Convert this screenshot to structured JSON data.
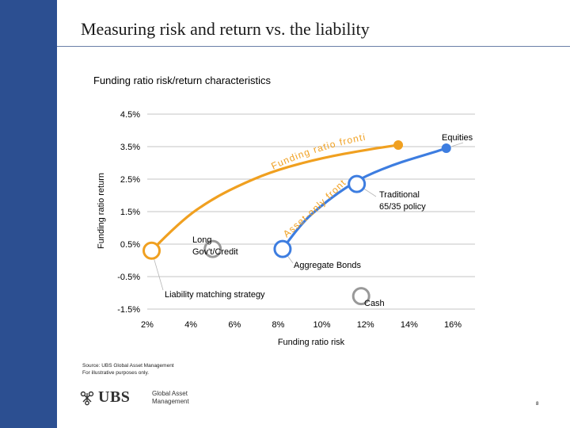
{
  "slide": {
    "title": "Measuring risk and return vs. the liability",
    "subtitle": "Funding ratio risk/return characteristics",
    "source_line1": "Source: UBS Global Asset Management",
    "source_line2": "For illustrative purposes only.",
    "logo_text": "UBS",
    "logo_name_line1": "Global Asset",
    "logo_name_line2": "Management",
    "page_number": "8"
  },
  "colors": {
    "sidebar": "#2c4f91",
    "liability_frontier": "#f0a020",
    "asset_frontier": "#3d7de0",
    "gray_point": "#999999",
    "grid": "#b0b0b0"
  },
  "chart_data": {
    "type": "scatter",
    "xlabel": "Funding ratio risk",
    "ylabel": "Funding ratio return",
    "xlim": [
      2,
      16
    ],
    "ylim": [
      -1.5,
      4.5
    ],
    "x_ticks": [
      2,
      4,
      6,
      8,
      10,
      12,
      14,
      16
    ],
    "x_tick_labels": [
      "2%",
      "4%",
      "6%",
      "8%",
      "10%",
      "12%",
      "14%",
      "16%"
    ],
    "y_ticks": [
      4.5,
      3.5,
      2.5,
      1.5,
      0.5,
      -0.5,
      -1.5
    ],
    "y_tick_labels": [
      "4.5%",
      "3.5%",
      "2.5%",
      "1.5%",
      "0.5%",
      "-0.5%",
      "-1.5%"
    ],
    "grid": true,
    "series": [
      {
        "name": "Funding ratio frontier",
        "curve_label": "Funding ratio frontier",
        "color": "#f0a020",
        "points": [
          [
            2.2,
            0.3
          ],
          [
            3.5,
            1.2
          ],
          [
            5.0,
            1.9
          ],
          [
            6.5,
            2.4
          ],
          [
            8.0,
            2.8
          ],
          [
            10.0,
            3.15
          ],
          [
            12.0,
            3.4
          ],
          [
            13.5,
            3.55
          ]
        ]
      },
      {
        "name": "Asset-only frontier",
        "curve_label": "Asset-only frontier",
        "color": "#3d7de0",
        "points": [
          [
            8.2,
            0.35
          ],
          [
            9.0,
            1.1
          ],
          [
            10.0,
            1.7
          ],
          [
            11.0,
            2.2
          ],
          [
            12.0,
            2.6
          ],
          [
            13.5,
            3.0
          ],
          [
            15.0,
            3.3
          ],
          [
            15.7,
            3.45
          ]
        ]
      }
    ],
    "points": [
      {
        "label": "Liability matching strategy",
        "x": 2.2,
        "y": 0.3,
        "fill": "#ffffff",
        "stroke": "#f0a020",
        "marker": "circle"
      },
      {
        "label": "Long Gov't/Credit",
        "x": 5.0,
        "y": 0.35,
        "fill": "#ffffff",
        "stroke": "#999999",
        "marker": "circle"
      },
      {
        "label": "Aggregate Bonds",
        "x": 8.2,
        "y": 0.35,
        "fill": "#ffffff",
        "stroke": "#3d7de0",
        "marker": "circle"
      },
      {
        "label": "Traditional 65/35 policy",
        "x": 11.6,
        "y": 2.35,
        "fill": "#ffffff",
        "stroke": "#3d7de0",
        "marker": "circle"
      },
      {
        "label": "Cash",
        "x": 11.8,
        "y": -1.1,
        "fill": "#ffffff",
        "stroke": "#999999",
        "marker": "circle"
      },
      {
        "label": "Equities",
        "x": 15.7,
        "y": 3.45,
        "fill": "#3d7de0",
        "stroke": "#3d7de0",
        "marker": "dot"
      },
      {
        "label": "",
        "x": 13.5,
        "y": 3.55,
        "fill": "#f0a020",
        "stroke": "#f0a020",
        "marker": "dot"
      }
    ],
    "annotations": {
      "liability_matching": "Liability matching strategy",
      "long_govt_line1": "Long",
      "long_govt_line2": "Gov't/Credit",
      "aggregate_bonds": "Aggregate Bonds",
      "traditional_line1": "Traditional",
      "traditional_line2": "65/35 policy",
      "cash": "Cash",
      "equities": "Equities"
    }
  }
}
